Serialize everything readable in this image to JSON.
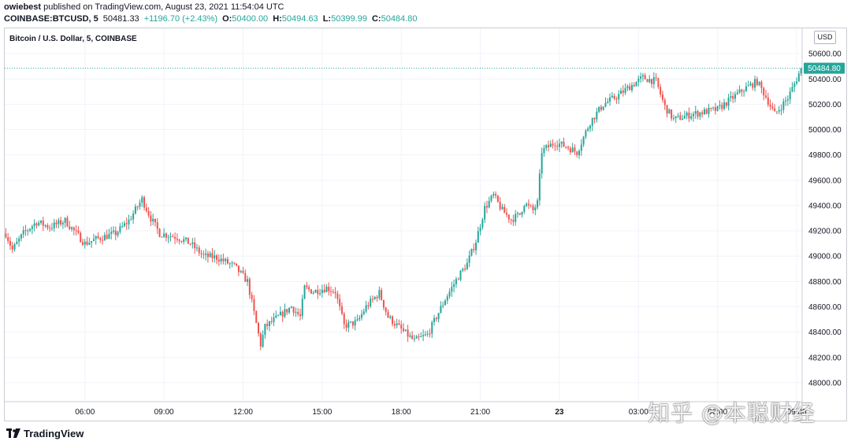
{
  "header": {
    "published_user": "owiebest",
    "published_rest": " published on TradingView.com, August 23, 2021 11:54:04 UTC",
    "symbol": "COINBASE:BTCUSD, 5",
    "last": "50481.33",
    "change": "+1196.70 (+2.43%)",
    "open_label": "O:",
    "open": "50400.00",
    "high_label": "H:",
    "high": "50494.63",
    "low_label": "L:",
    "low": "50399.99",
    "close_label": "C:",
    "close": "50484.80"
  },
  "chart_title": "Bitcoin / U.S. Dollar, 5, COINBASE",
  "currency_button": "USD",
  "footer_logo": "TradingView",
  "watermark": "知乎 @本聪财经",
  "colors": {
    "up": "#26a69a",
    "down": "#ef5350",
    "grid": "#f0f3fa",
    "price_line": "#26a69a"
  },
  "chart_data": {
    "type": "candlestick",
    "title": "Bitcoin / U.S. Dollar, 5, COINBASE",
    "ylabel": "USD",
    "ylim": [
      47850,
      50800
    ],
    "y_ticks": [
      48000,
      48200,
      48400,
      48600,
      48800,
      49000,
      49200,
      49400,
      49600,
      49800,
      50000,
      50200,
      50400,
      50600
    ],
    "y_tick_labels": [
      "48000.00",
      "48200.00",
      "48400.00",
      "48600.00",
      "48800.00",
      "49000.00",
      "49200.00",
      "49400.00",
      "49600.00",
      "49800.00",
      "50000.00",
      "50200.00",
      "50400.00",
      "50600.00"
    ],
    "x_tick_labels": [
      "06:00",
      "09:00",
      "12:00",
      "15:00",
      "18:00",
      "21:00",
      "23",
      "03:00",
      "06:00",
      "09:00"
    ],
    "x_tick_positions": [
      36,
      72,
      108,
      144,
      180,
      216,
      252,
      288,
      324,
      360
    ],
    "last_price": 50484.8,
    "last_price_label": "50484.80",
    "grid": true,
    "path": [
      [
        0,
        49180
      ],
      [
        3,
        49050
      ],
      [
        8,
        49180
      ],
      [
        14,
        49270
      ],
      [
        20,
        49230
      ],
      [
        27,
        49280
      ],
      [
        36,
        49100
      ],
      [
        42,
        49140
      ],
      [
        50,
        49180
      ],
      [
        56,
        49280
      ],
      [
        62,
        49450
      ],
      [
        66,
        49300
      ],
      [
        70,
        49180
      ],
      [
        78,
        49150
      ],
      [
        84,
        49100
      ],
      [
        90,
        49000
      ],
      [
        96,
        48990
      ],
      [
        104,
        48920
      ],
      [
        110,
        48800
      ],
      [
        116,
        48300
      ],
      [
        118,
        48440
      ],
      [
        124,
        48520
      ],
      [
        130,
        48600
      ],
      [
        134,
        48520
      ],
      [
        136,
        48750
      ],
      [
        140,
        48720
      ],
      [
        146,
        48750
      ],
      [
        150,
        48720
      ],
      [
        154,
        48450
      ],
      [
        160,
        48480
      ],
      [
        164,
        48600
      ],
      [
        170,
        48710
      ],
      [
        174,
        48520
      ],
      [
        180,
        48420
      ],
      [
        186,
        48330
      ],
      [
        192,
        48380
      ],
      [
        200,
        48660
      ],
      [
        206,
        48840
      ],
      [
        210,
        48940
      ],
      [
        214,
        49120
      ],
      [
        218,
        49380
      ],
      [
        222,
        49480
      ],
      [
        226,
        49360
      ],
      [
        230,
        49290
      ],
      [
        234,
        49330
      ],
      [
        236,
        49420
      ],
      [
        240,
        49360
      ],
      [
        242,
        49420
      ],
      [
        244,
        49830
      ],
      [
        250,
        49900
      ],
      [
        256,
        49860
      ],
      [
        260,
        49820
      ],
      [
        266,
        50060
      ],
      [
        272,
        50200
      ],
      [
        278,
        50260
      ],
      [
        284,
        50340
      ],
      [
        290,
        50410
      ],
      [
        296,
        50380
      ],
      [
        300,
        50180
      ],
      [
        304,
        50080
      ],
      [
        312,
        50120
      ],
      [
        318,
        50140
      ],
      [
        324,
        50160
      ],
      [
        330,
        50240
      ],
      [
        336,
        50320
      ],
      [
        342,
        50380
      ],
      [
        346,
        50260
      ],
      [
        350,
        50120
      ],
      [
        356,
        50250
      ],
      [
        360,
        50400
      ],
      [
        362,
        50484
      ]
    ],
    "total_bars": 363
  }
}
